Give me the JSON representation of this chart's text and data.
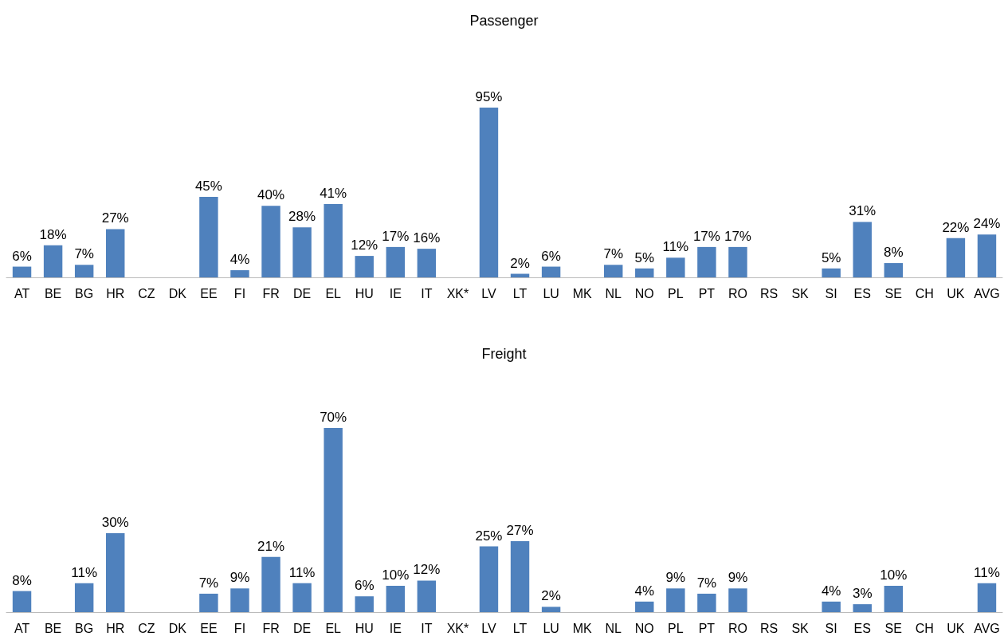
{
  "chart_data": [
    {
      "type": "bar",
      "title": "Passenger",
      "categories": [
        "AT",
        "BE",
        "BG",
        "HR",
        "CZ",
        "DK",
        "EE",
        "FI",
        "FR",
        "DE",
        "EL",
        "HU",
        "IE",
        "IT",
        "XK*",
        "LV",
        "LT",
        "LU",
        "MK",
        "NL",
        "NO",
        "PL",
        "PT",
        "RO",
        "RS",
        "SK",
        "SI",
        "ES",
        "SE",
        "CH",
        "UK",
        "AVG"
      ],
      "values": [
        6,
        18,
        7,
        27,
        null,
        null,
        45,
        4,
        40,
        28,
        41,
        12,
        17,
        16,
        null,
        95,
        2,
        6,
        null,
        7,
        5,
        11,
        17,
        17,
        null,
        null,
        5,
        31,
        8,
        null,
        22,
        24
      ],
      "value_labels": [
        "6%",
        "18%",
        "7%",
        "27%",
        null,
        null,
        "45%",
        "4%",
        "40%",
        "28%",
        "41%",
        "12%",
        "17%",
        "16%",
        null,
        "95%",
        "2%",
        "6%",
        null,
        "7%",
        "5%",
        "11%",
        "17%",
        "17%",
        null,
        null,
        "5%",
        "31%",
        "8%",
        null,
        "22%",
        "24%"
      ],
      "color": "#4f81bd"
    },
    {
      "type": "bar",
      "title": "Freight",
      "categories": [
        "AT",
        "BE",
        "BG",
        "HR",
        "CZ",
        "DK",
        "EE",
        "FI",
        "FR",
        "DE",
        "EL",
        "HU",
        "IE",
        "IT",
        "XK*",
        "LV",
        "LT",
        "LU",
        "MK",
        "NL",
        "NO",
        "PL",
        "PT",
        "RO",
        "RS",
        "SK",
        "SI",
        "ES",
        "SE",
        "CH",
        "UK",
        "AVG"
      ],
      "values": [
        8,
        null,
        11,
        30,
        null,
        null,
        7,
        9,
        21,
        11,
        70,
        6,
        10,
        12,
        null,
        25,
        27,
        2,
        null,
        null,
        4,
        9,
        7,
        9,
        null,
        null,
        4,
        3,
        10,
        null,
        null,
        11
      ],
      "value_labels": [
        "8%",
        null,
        "11%",
        "30%",
        null,
        null,
        "7%",
        "9%",
        "21%",
        "11%",
        "70%",
        "6%",
        "10%",
        "12%",
        null,
        "25%",
        "27%",
        "2%",
        null,
        null,
        "4%",
        "9%",
        "7%",
        "9%",
        null,
        null,
        "4%",
        "3%",
        "10%",
        null,
        null,
        "11%"
      ],
      "color": "#4f81bd"
    }
  ]
}
